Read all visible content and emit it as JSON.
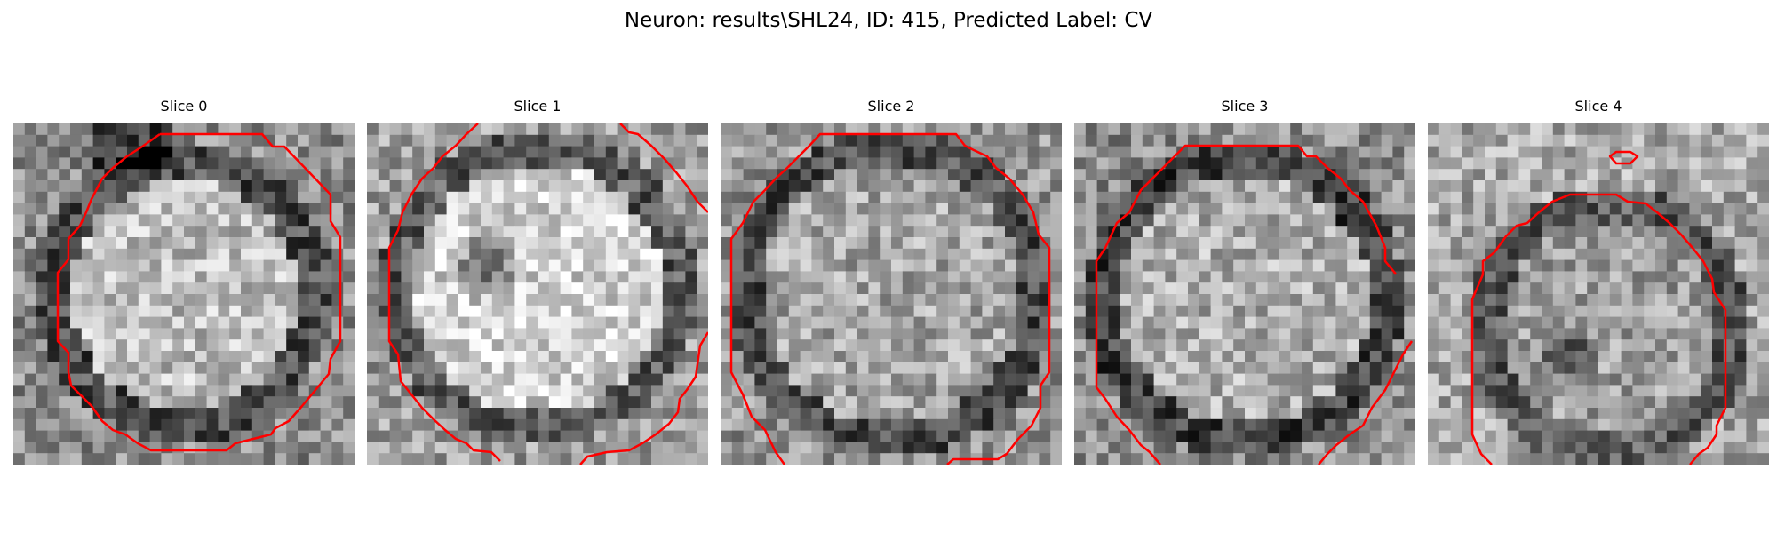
{
  "figure": {
    "title": "Neuron: results\\SHL24, ID: 415, Predicted Label: CV",
    "colors": {
      "contour": "#ff0000",
      "background": "#ffffff",
      "text": "#000000"
    }
  },
  "panels": [
    {
      "title": "Slice 0"
    },
    {
      "title": "Slice 1"
    },
    {
      "title": "Slice 2"
    },
    {
      "title": "Slice 3"
    },
    {
      "title": "Slice 4"
    }
  ]
}
